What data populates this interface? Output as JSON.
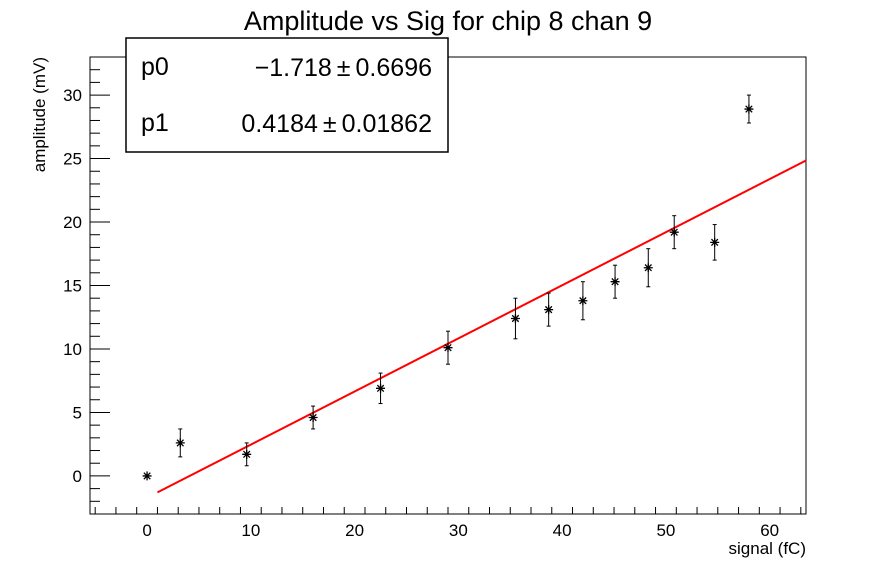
{
  "chart_data": {
    "type": "scatter",
    "title": "Amplitude vs Sig for chip 8 chan 9",
    "xlabel": "signal (fC)",
    "ylabel": "amplitude (mV)",
    "xlim": [
      -5.5,
      63.5
    ],
    "ylim": [
      -3,
      33
    ],
    "x_ticks": [
      0,
      10,
      20,
      30,
      40,
      50,
      60
    ],
    "y_ticks": [
      0,
      5,
      10,
      15,
      20,
      25,
      30
    ],
    "grid": false,
    "points": [
      {
        "x": 0.0,
        "y": 0.0,
        "err": 0.0
      },
      {
        "x": 3.2,
        "y": 2.6,
        "err": 1.1
      },
      {
        "x": 9.6,
        "y": 1.7,
        "err": 0.9
      },
      {
        "x": 16.0,
        "y": 4.6,
        "err": 0.9
      },
      {
        "x": 22.5,
        "y": 6.9,
        "err": 1.2
      },
      {
        "x": 29.0,
        "y": 10.1,
        "err": 1.3
      },
      {
        "x": 35.5,
        "y": 12.4,
        "err": 1.6
      },
      {
        "x": 38.7,
        "y": 13.1,
        "err": 1.3
      },
      {
        "x": 42.0,
        "y": 13.8,
        "err": 1.5
      },
      {
        "x": 45.1,
        "y": 15.3,
        "err": 1.3
      },
      {
        "x": 48.3,
        "y": 16.4,
        "err": 1.5
      },
      {
        "x": 50.8,
        "y": 19.2,
        "err": 1.3
      },
      {
        "x": 54.7,
        "y": 18.4,
        "err": 1.4
      },
      {
        "x": 58.0,
        "y": 28.9,
        "err": 1.1
      }
    ],
    "fit": {
      "type": "linear",
      "color": "#ff0000",
      "x_range": [
        1.0,
        63.5
      ],
      "p0": -1.718,
      "p1": 0.4184
    },
    "stats": {
      "placement": "top-left",
      "rows": [
        {
          "name": "p0",
          "value": "−1.718",
          "error": "0.6696"
        },
        {
          "name": "p1",
          "value": "0.4184",
          "error": "0.01862"
        }
      ]
    }
  }
}
